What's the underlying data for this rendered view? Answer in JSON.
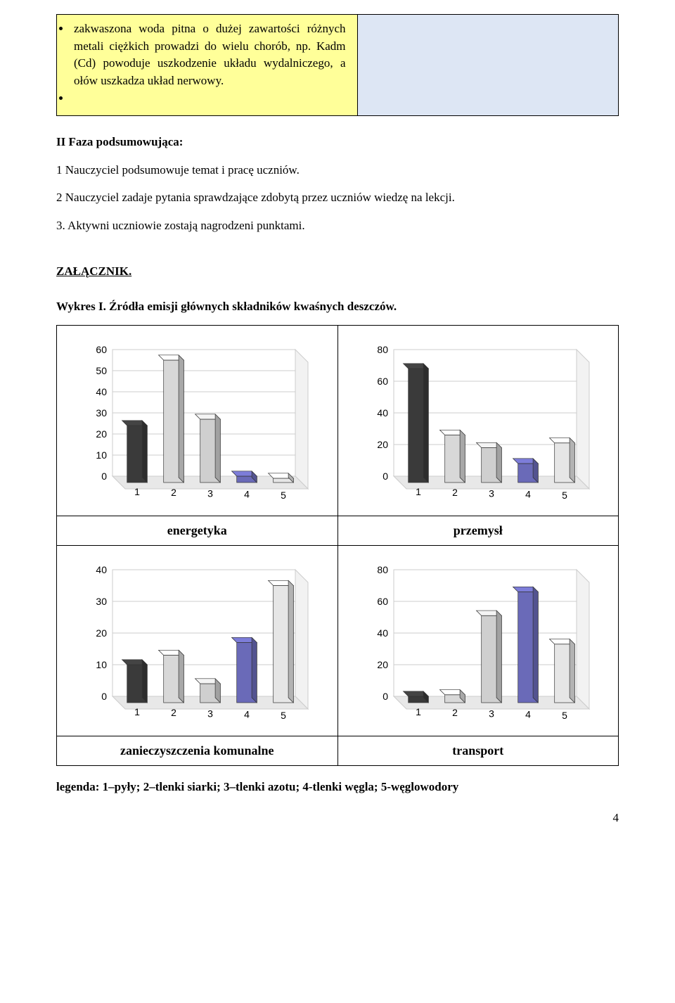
{
  "top_box_text": "zakwaszona woda pitna o dużej zawartości różnych metali ciężkich prowadzi do wielu chorób, np. Kadm (Cd) powoduje uszkodzenie układu wydalniczego, a ołów uszkadza układ nerwowy.",
  "section_heading": "II Faza podsumowująca:",
  "line1": "1 Nauczyciel podsumowuje temat  i pracę uczniów.",
  "line2": "2 Nauczyciel zadaje pytania sprawdzające zdobytą przez uczniów wiedzę na lekcji.",
  "line3": "3. Aktywni uczniowie zostają nagrodzeni punktami.",
  "attachment_heading": "ZAŁĄCZNIK.",
  "chart_title": "Wykres  I.  Źródła emisji głównych składników kwaśnych deszczów.",
  "charts": {
    "energetyka": {
      "label": "energetyka",
      "ymax": 60,
      "ytick_step": 10,
      "values": [
        27,
        58,
        30,
        3,
        2
      ],
      "colors": [
        "#3a3a3a",
        "#d8d8d8",
        "#cfcfcf",
        "#6a6ab8",
        "#e6e6e6"
      ]
    },
    "przemysl": {
      "label": "przemysł",
      "ymax": 80,
      "ytick_step": 20,
      "values": [
        72,
        30,
        22,
        12,
        25
      ],
      "colors": [
        "#3a3a3a",
        "#d8d8d8",
        "#cfcfcf",
        "#6a6ab8",
        "#e6e6e6"
      ]
    },
    "komunalne": {
      "label": "zanieczyszczenia komunalne",
      "ymax": 40,
      "ytick_step": 10,
      "values": [
        12,
        15,
        6,
        19,
        37
      ],
      "colors": [
        "#3a3a3a",
        "#d8d8d8",
        "#cfcfcf",
        "#6a6ab8",
        "#e6e6e6"
      ]
    },
    "transport": {
      "label": "transport",
      "ymax": 80,
      "ytick_step": 20,
      "values": [
        4,
        5,
        55,
        70,
        37
      ],
      "colors": [
        "#3a3a3a",
        "#d8d8d8",
        "#cfcfcf",
        "#6a6ab8",
        "#e6e6e6"
      ]
    }
  },
  "x_labels": [
    "1",
    "2",
    "3",
    "4",
    "5"
  ],
  "legend": "legenda: 1–pyły; 2–tlenki siarki; 3–tlenki azotu; 4-tlenki węgla; 5-węglowodory",
  "page_number": "4",
  "chart_style": {
    "tick_font_size": 14,
    "axis_color": "#666666",
    "grid_color": "#cccccc",
    "floor_fill": "#e8e8e8",
    "back_fill": "#ffffff",
    "bar_stroke": "#333333"
  }
}
